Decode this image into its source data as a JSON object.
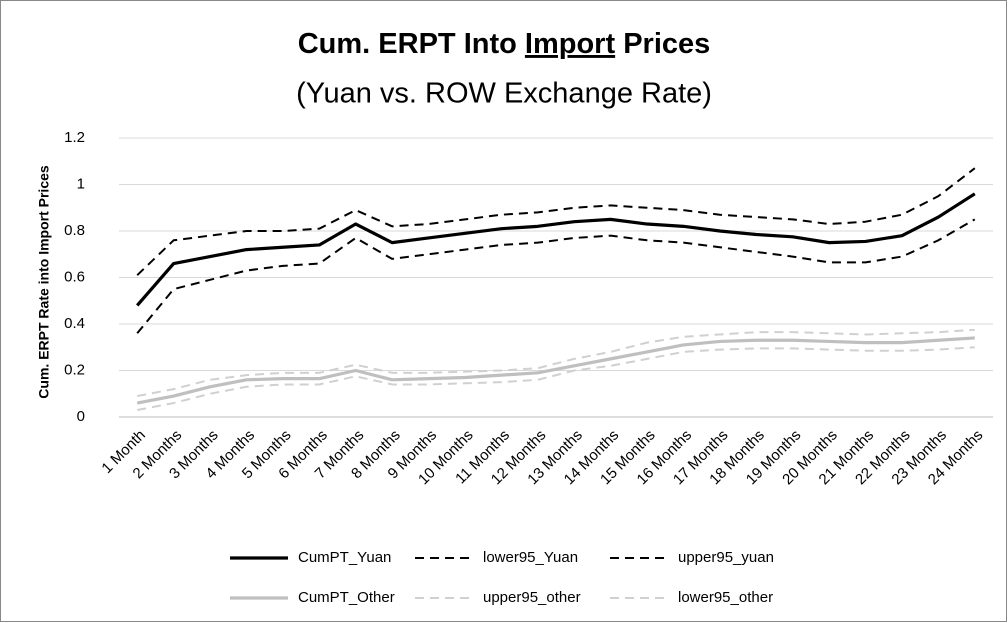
{
  "chart_data": {
    "type": "line",
    "title": [
      "Cum. ERPT Into",
      "Import",
      "Prices"
    ],
    "subtitle": "(Yuan vs. ROW Exchange Rate)",
    "y_label": "Cum. ERPT Rate into Import Prices",
    "categories": [
      "1 Month",
      "2 Months",
      "3 Months",
      "4 Months",
      "5 Months",
      "6 Months",
      "7 Months",
      "8 Months",
      "9 Months",
      "10 Months",
      "11 Months",
      "12 Months",
      "13 Months",
      "14 Months",
      "15 Months",
      "16 Months",
      "17 Months",
      "18 Months",
      "19 Months",
      "20 Months",
      "21 Months",
      "22 Months",
      "23 Months",
      "24 Months"
    ],
    "ylim": [
      0,
      1.2
    ],
    "yticks": [
      0,
      0.2,
      0.4,
      0.6,
      0.8,
      1,
      1.2
    ],
    "grid": true,
    "series": [
      {
        "name": "CumPT_Yuan",
        "color": "#000000",
        "dashed": false,
        "values": [
          0.48,
          0.66,
          0.69,
          0.72,
          0.73,
          0.74,
          0.83,
          0.75,
          0.77,
          0.79,
          0.81,
          0.82,
          0.84,
          0.85,
          0.83,
          0.82,
          0.8,
          0.785,
          0.775,
          0.75,
          0.755,
          0.78,
          0.86,
          0.96
        ]
      },
      {
        "name": "lower95_Yuan",
        "color": "#000000",
        "dashed": true,
        "values": [
          0.36,
          0.55,
          0.59,
          0.63,
          0.65,
          0.66,
          0.77,
          0.68,
          0.7,
          0.72,
          0.74,
          0.75,
          0.77,
          0.78,
          0.76,
          0.75,
          0.73,
          0.71,
          0.69,
          0.665,
          0.665,
          0.69,
          0.76,
          0.85
        ]
      },
      {
        "name": "upper95_yuan",
        "color": "#000000",
        "dashed": true,
        "values": [
          0.61,
          0.76,
          0.78,
          0.8,
          0.8,
          0.81,
          0.89,
          0.82,
          0.83,
          0.85,
          0.87,
          0.88,
          0.9,
          0.91,
          0.9,
          0.89,
          0.87,
          0.86,
          0.85,
          0.83,
          0.84,
          0.87,
          0.95,
          1.07
        ]
      },
      {
        "name": "CumPT_Other",
        "color": "#bfbfbf",
        "dashed": false,
        "values": [
          0.06,
          0.09,
          0.13,
          0.16,
          0.165,
          0.165,
          0.2,
          0.16,
          0.165,
          0.17,
          0.18,
          0.19,
          0.22,
          0.25,
          0.28,
          0.31,
          0.325,
          0.33,
          0.33,
          0.325,
          0.32,
          0.32,
          0.33,
          0.34
        ]
      },
      {
        "name": "upper95_other",
        "color": "#d0d0d0",
        "dashed": true,
        "values": [
          0.09,
          0.12,
          0.16,
          0.18,
          0.19,
          0.19,
          0.225,
          0.19,
          0.19,
          0.195,
          0.2,
          0.21,
          0.25,
          0.28,
          0.32,
          0.345,
          0.355,
          0.365,
          0.365,
          0.36,
          0.355,
          0.36,
          0.365,
          0.375
        ]
      },
      {
        "name": "lower95_other",
        "color": "#d0d0d0",
        "dashed": true,
        "values": [
          0.03,
          0.06,
          0.1,
          0.13,
          0.14,
          0.14,
          0.175,
          0.14,
          0.14,
          0.145,
          0.15,
          0.16,
          0.2,
          0.22,
          0.25,
          0.28,
          0.29,
          0.295,
          0.295,
          0.29,
          0.285,
          0.285,
          0.29,
          0.3
        ]
      }
    ]
  }
}
